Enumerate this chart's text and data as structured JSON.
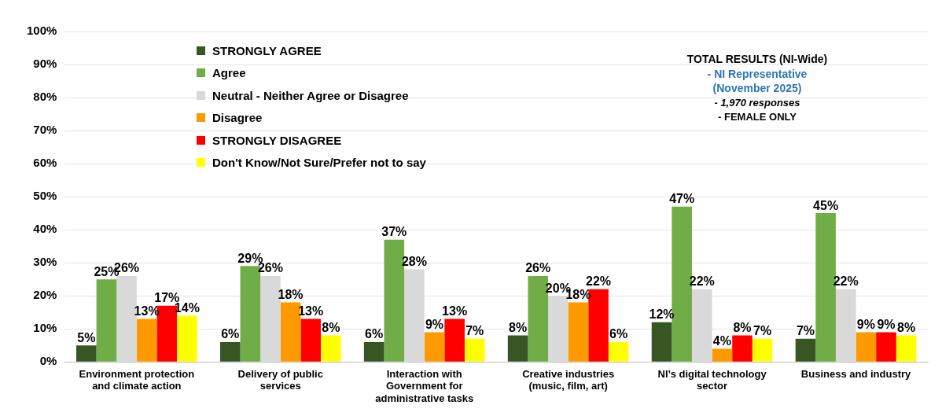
{
  "chart_data": {
    "type": "bar",
    "categories": [
      "Environment protection and climate action",
      "Delivery of public services",
      "Interaction with Government for administrative tasks",
      "Creative industries (music, film, art)",
      "NI’s digital technology sector",
      "Business and industry"
    ],
    "series": [
      {
        "name": "STRONGLY AGREE",
        "color": "#375623",
        "values": [
          5,
          6,
          6,
          8,
          12,
          7
        ],
        "value_labels": [
          "5%",
          "6%",
          "6%",
          "8%",
          "12%",
          "7%"
        ]
      },
      {
        "name": "Agree",
        "color": "#70ad47",
        "values": [
          25,
          29,
          37,
          26,
          47,
          45
        ],
        "value_labels": [
          "25%",
          "29%",
          "37%",
          "26%",
          "47%",
          "45%"
        ]
      },
      {
        "name": "Neutral - Neither Agree or Disagree",
        "color": "#d9d9d9",
        "values": [
          26,
          26,
          28,
          20,
          22,
          22
        ],
        "value_labels": [
          "26%",
          "26%",
          "28%",
          "20%",
          "22%",
          "22%"
        ]
      },
      {
        "name": "Disagree",
        "color": "#ff9900",
        "values": [
          13,
          18,
          9,
          18,
          4,
          9
        ],
        "value_labels": [
          "13%",
          "18%",
          "9%",
          "18%",
          "4%",
          "9%"
        ]
      },
      {
        "name": "STRONGLY DISAGREE",
        "color": "#ff0000",
        "values": [
          17,
          13,
          13,
          22,
          8,
          9
        ],
        "value_labels": [
          "17%",
          "13%",
          "13%",
          "22%",
          "8%",
          "9%"
        ]
      },
      {
        "name": "Don't Know/Not Sure/Prefer not to say",
        "color": "#ffff00",
        "values": [
          14,
          8,
          7,
          6,
          7,
          8
        ],
        "value_labels": [
          "14%",
          "8%",
          "7%",
          "6%",
          "7%",
          "8%"
        ]
      }
    ],
    "ylim": [
      0,
      100
    ],
    "yticks": [
      {
        "value": 0,
        "label": "0%"
      },
      {
        "value": 10,
        "label": "10%"
      },
      {
        "value": 20,
        "label": "20%"
      },
      {
        "value": 30,
        "label": "30%"
      },
      {
        "value": 40,
        "label": "40%"
      },
      {
        "value": 50,
        "label": "50%"
      },
      {
        "value": 60,
        "label": "60%"
      },
      {
        "value": 70,
        "label": "70%"
      },
      {
        "value": 80,
        "label": "80%"
      },
      {
        "value": 90,
        "label": "90%"
      },
      {
        "value": 100,
        "label": "100%"
      }
    ],
    "grid": "y",
    "legend": "top left",
    "annotations": [
      "TOTAL RESULTS (NI-Wide)",
      "- NI Representative (November 2025)",
      "- 1,970 responses",
      "- FEMALE ONLY"
    ]
  }
}
